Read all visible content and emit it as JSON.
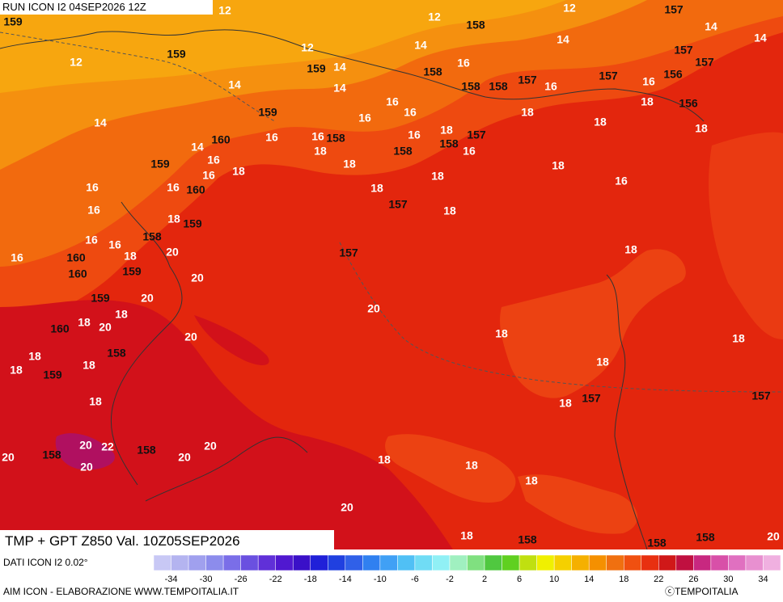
{
  "header": {
    "run": "RUN ICON I2 04SEP2026 12Z",
    "title": "TMP + GPT Z850 Val. 10Z05SEP2026"
  },
  "map": {
    "temperature_labels": [
      "12",
      "12",
      "12",
      "14",
      "14",
      "12",
      "14",
      "12",
      "14",
      "16",
      "16",
      "16",
      "14",
      "14",
      "14",
      "16",
      "18",
      "18",
      "18",
      "18",
      "14",
      "16",
      "16",
      "18",
      "16",
      "16",
      "16",
      "18",
      "14",
      "16",
      "18",
      "18",
      "16",
      "16",
      "18",
      "18",
      "16",
      "16",
      "18",
      "18",
      "16",
      "18",
      "16",
      "16",
      "20",
      "18",
      "16",
      "18",
      "20",
      "16",
      "20",
      "20",
      "18",
      "18",
      "20",
      "20",
      "18",
      "18",
      "18",
      "18",
      "18",
      "18",
      "18",
      "18",
      "20",
      "22",
      "20",
      "20",
      "20",
      "20",
      "18",
      "18",
      "18",
      "20",
      "18",
      "20"
    ],
    "geopotential_labels": [
      "159",
      "157",
      "158",
      "157",
      "157",
      "159",
      "159",
      "158",
      "158",
      "158",
      "157",
      "157",
      "156",
      "156",
      "159",
      "157",
      "158",
      "160",
      "158",
      "158",
      "159",
      "160",
      "157",
      "159",
      "158",
      "160",
      "157",
      "160",
      "159",
      "159",
      "160",
      "158",
      "159",
      "157",
      "157",
      "158",
      "158",
      "158",
      "158",
      "158"
    ]
  },
  "legend": {
    "source": "DATI ICON I2 0.02°",
    "ticks": [
      -34,
      -30,
      -26,
      -22,
      -18,
      -14,
      -10,
      -6,
      -2,
      2,
      6,
      10,
      14,
      18,
      22,
      26,
      30,
      34
    ]
  },
  "footer": {
    "credit": "AIM ICON - ELABORAZIONE WWW.TEMPOITALIA.IT",
    "brand": "ⓒTEMPOITALIA"
  }
}
